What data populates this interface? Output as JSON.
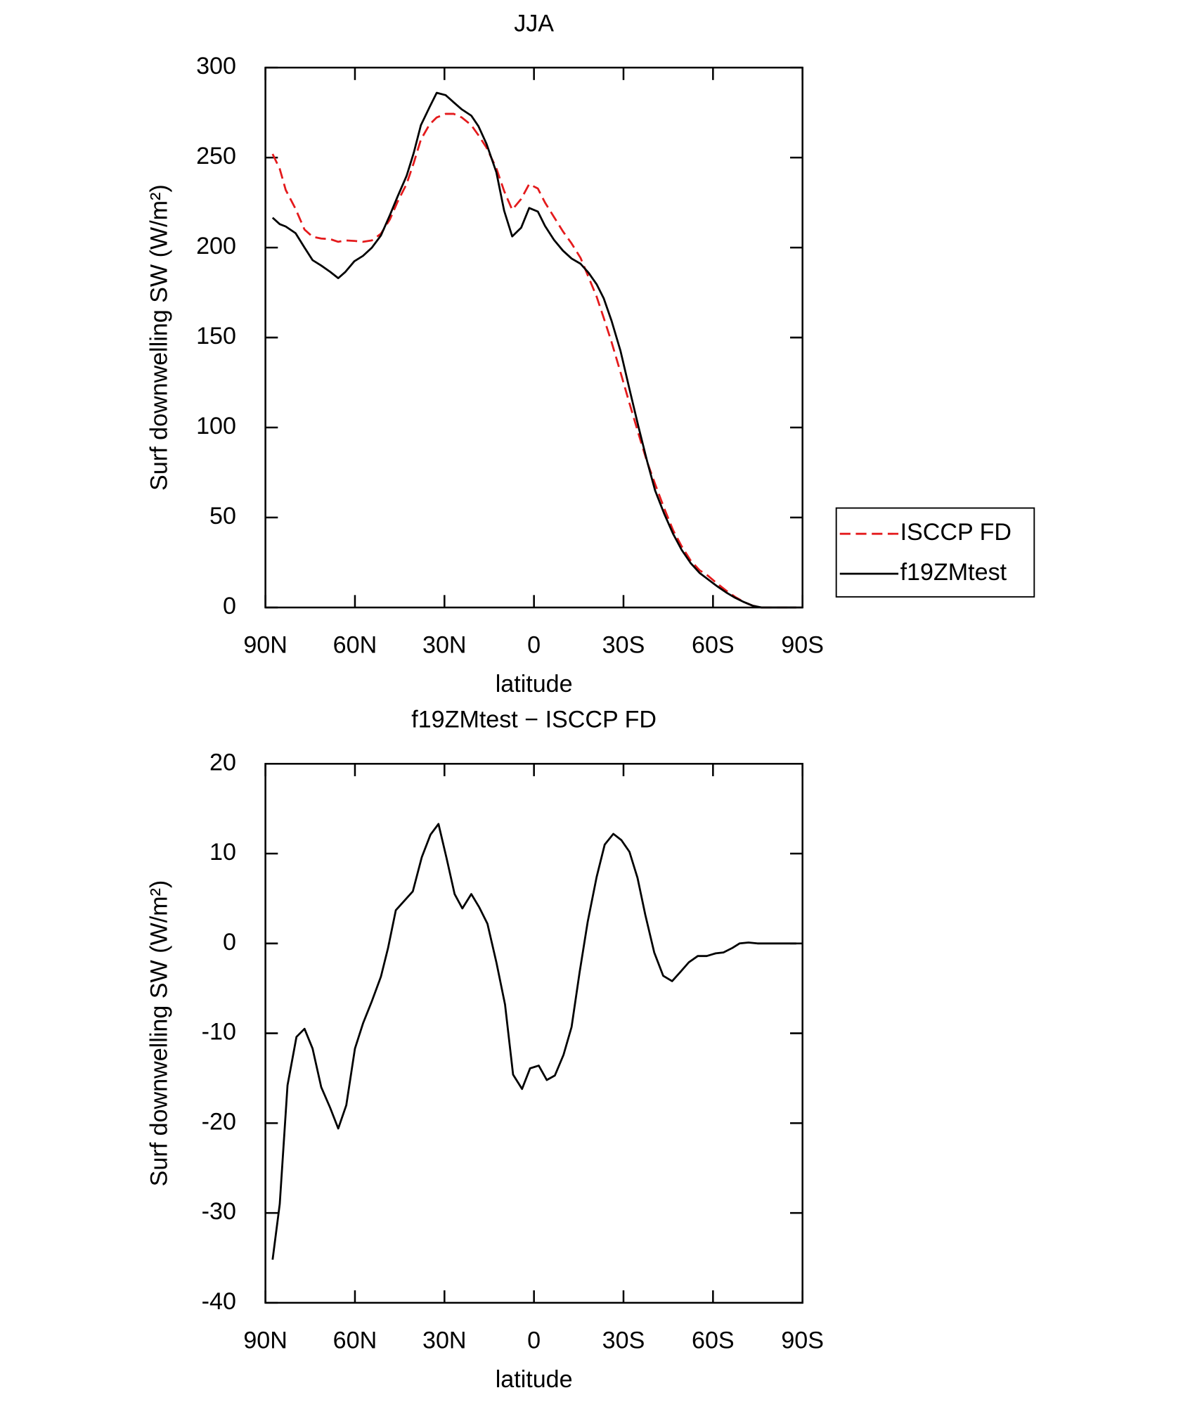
{
  "chart_data": [
    {
      "type": "line",
      "title": "JJA",
      "xlabel": "latitude",
      "ylabel": "Surf downwelling SW (W/m²)",
      "x": [
        87.6,
        85.2,
        83.2,
        79.9,
        76.9,
        74.2,
        71.3,
        68.3,
        65.6,
        63.2,
        60.2,
        57.3,
        54.3,
        51.3,
        48.3,
        45.7,
        42.7,
        40.3,
        37.9,
        35.0,
        32.6,
        29.6,
        26.9,
        24.2,
        21.0,
        18.6,
        15.9,
        12.6,
        10.0,
        7.3,
        4.3,
        1.6,
        -1.3,
        -3.7,
        -6.7,
        -9.7,
        -12.6,
        -15.6,
        -18.3,
        -21.0,
        -23.4,
        -26.0,
        -29.0,
        -32.0,
        -35.0,
        -37.9,
        -40.6,
        -43.6,
        -46.6,
        -49.5,
        -52.5,
        -55.5,
        -58.2,
        -61.4,
        -64.4,
        -67.4,
        -70.4,
        -73.3,
        -76.3,
        -79.3,
        -82.3,
        -85.2,
        -87.9
      ],
      "series": [
        {
          "name": "ISCCP FD",
          "color": "#e41a1c",
          "dashed": true,
          "values": [
            252,
            243.7,
            232,
            221.5,
            210,
            206,
            205,
            204.7,
            203.2,
            204,
            203.7,
            203.2,
            204,
            207.7,
            215.6,
            225.5,
            235.3,
            247,
            260,
            268.4,
            272.3,
            274.3,
            274.3,
            272.3,
            268,
            262.4,
            255.5,
            244,
            231.4,
            221,
            227,
            235.3,
            232.8,
            225,
            217,
            209,
            202.3,
            194.3,
            183.5,
            172.7,
            160.8,
            147.5,
            130.7,
            113.5,
            96.7,
            81,
            68.6,
            55.3,
            43,
            34,
            26.1,
            20.7,
            17.8,
            13.3,
            9.4,
            5.9,
            3,
            1,
            0,
            0,
            0,
            0,
            0
          ]
        },
        {
          "name": "f19ZMtest",
          "color": "#000000",
          "dashed": false,
          "values": [
            216.6,
            213,
            211.7,
            208,
            200,
            193,
            190,
            186.5,
            183,
            186.5,
            192.4,
            195.4,
            200,
            206.7,
            218,
            228.4,
            239.8,
            252.6,
            268,
            278,
            286,
            284.7,
            280.7,
            276.8,
            273.3,
            267.4,
            257.6,
            241.8,
            220.5,
            206.2,
            211,
            222,
            220,
            212,
            204.3,
            198.3,
            193.9,
            191,
            186,
            179.6,
            171.7,
            159.3,
            142.6,
            121.4,
            100.6,
            81.4,
            65,
            52.3,
            41,
            32,
            24.7,
            19.2,
            15.8,
            11.8,
            8.4,
            5.4,
            3,
            1,
            0,
            0,
            0,
            0,
            0
          ]
        }
      ],
      "xlim": [
        90,
        -90
      ],
      "xticks": [
        {
          "value": 90,
          "label": "90N"
        },
        {
          "value": 60,
          "label": "60N"
        },
        {
          "value": 30,
          "label": "30N"
        },
        0,
        {
          "value": -30,
          "label": "30S"
        },
        {
          "value": -60,
          "label": "60S"
        },
        {
          "value": -90,
          "label": "90S"
        }
      ],
      "ylim": [
        0,
        300
      ],
      "yticks": [
        0,
        50,
        100,
        150,
        200,
        250,
        300
      ],
      "legend": "right"
    },
    {
      "type": "line",
      "title": "f19ZMtest − ISCCP FD",
      "xlabel": "latitude",
      "ylabel": "Surf downwelling SW (W/m²)",
      "x": [
        87.6,
        85.2,
        82.6,
        79.6,
        76.9,
        74.2,
        71.3,
        68.3,
        65.6,
        62.9,
        60.0,
        57.3,
        54.3,
        51.3,
        48.9,
        46.3,
        43.3,
        40.6,
        37.6,
        34.7,
        32.0,
        29.3,
        26.6,
        24.0,
        21.0,
        18.3,
        15.6,
        12.6,
        9.7,
        7.0,
        4.0,
        1.3,
        -1.6,
        -4.3,
        -7.0,
        -9.9,
        -12.6,
        -15.3,
        -18.0,
        -21.0,
        -23.7,
        -26.6,
        -29.3,
        -32.0,
        -34.7,
        -37.3,
        -40.3,
        -43.3,
        -46.3,
        -49.0,
        -51.9,
        -54.9,
        -57.9,
        -60.9,
        -63.5,
        -66.5,
        -68.9,
        -71.9,
        -74.9,
        -79.9,
        -87.9
      ],
      "series": [
        {
          "name": "f19ZMtest",
          "color": "#000000",
          "dashed": false,
          "values": [
            -35.2,
            -29,
            -15.8,
            -10.4,
            -9.5,
            -11.7,
            -16,
            -18.3,
            -20.6,
            -18,
            -11.7,
            -8.9,
            -6.4,
            -3.7,
            -0.5,
            3.7,
            4.8,
            5.8,
            9.6,
            12.1,
            13.3,
            9.5,
            5.5,
            3.9,
            5.5,
            4,
            2.2,
            -2.1,
            -6.8,
            -14.6,
            -16.2,
            -13.9,
            -13.6,
            -15.2,
            -14.7,
            -12.4,
            -9.3,
            -3.2,
            2.4,
            7.4,
            11,
            12.2,
            11.5,
            10.2,
            7.3,
            3.2,
            -1,
            -3.6,
            -4.2,
            -3.2,
            -2.1,
            -1.4,
            -1.4,
            -1.1,
            -1,
            -0.5,
            0,
            0.1,
            0,
            0,
            0
          ]
        }
      ],
      "xlim": [
        90,
        -90
      ],
      "xticks": [
        {
          "value": 90,
          "label": "90N"
        },
        {
          "value": 60,
          "label": "60N"
        },
        {
          "value": 30,
          "label": "30N"
        },
        0,
        {
          "value": -30,
          "label": "30S"
        },
        {
          "value": -60,
          "label": "60S"
        },
        {
          "value": -90,
          "label": "90S"
        }
      ],
      "ylim": [
        -40,
        20
      ],
      "yticks": [
        -40,
        -30,
        -20,
        -10,
        0,
        10,
        20
      ]
    }
  ]
}
